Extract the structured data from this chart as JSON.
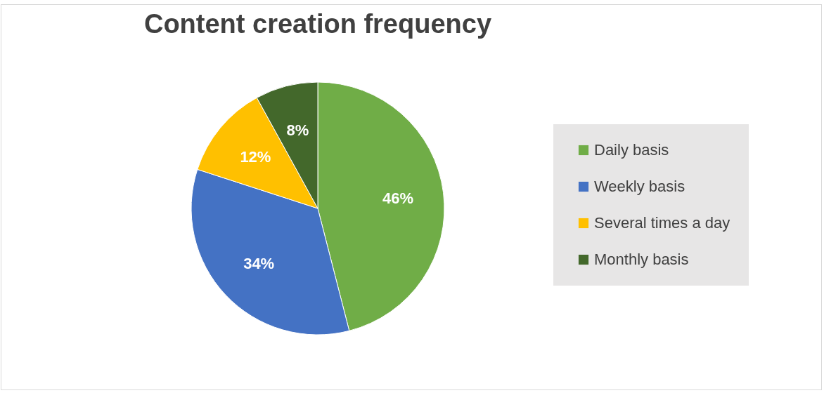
{
  "chart_data": {
    "type": "pie",
    "title": "Content creation frequency",
    "categories": [
      "Daily basis",
      "Weekly basis",
      "Several times a day",
      "Monthly basis"
    ],
    "values": [
      46,
      34,
      12,
      8
    ],
    "value_labels": [
      "46%",
      "34%",
      "12%",
      "8%"
    ],
    "colors": [
      "#70ad47",
      "#4472c4",
      "#ffc000",
      "#43682b"
    ],
    "legend": "right"
  }
}
